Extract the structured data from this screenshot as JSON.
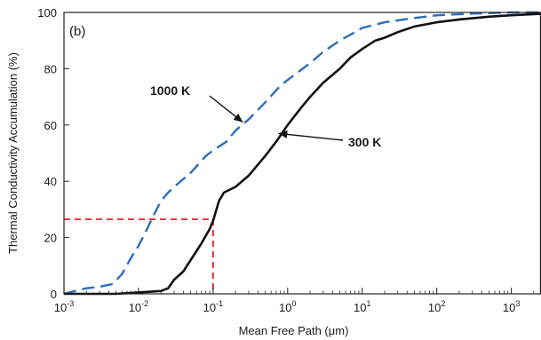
{
  "chart_data": {
    "type": "line",
    "panel_label": "(b)",
    "xlabel": "Mean Free Path (μm)",
    "ylabel": "Thermal Conductivity Accumulation (%)",
    "x_scale": "log",
    "xlim": [
      0.001,
      2500
    ],
    "ylim": [
      0,
      100
    ],
    "x_ticks": [
      {
        "value": 0.001,
        "base": "10",
        "exp": "-3"
      },
      {
        "value": 0.01,
        "base": "10",
        "exp": "-2"
      },
      {
        "value": 0.1,
        "base": "10",
        "exp": "-1"
      },
      {
        "value": 1,
        "base": "10",
        "exp": "0"
      },
      {
        "value": 10,
        "base": "10",
        "exp": "1"
      },
      {
        "value": 100,
        "base": "10",
        "exp": "2"
      },
      {
        "value": 1000,
        "base": "10",
        "exp": "3"
      }
    ],
    "y_ticks": [
      0,
      20,
      40,
      60,
      80,
      100
    ],
    "grid": false,
    "series": [
      {
        "name": "1000 K",
        "color": "#2a6ebb",
        "dash": "dashed",
        "points": [
          [
            0.001,
            0
          ],
          [
            0.0014,
            1
          ],
          [
            0.002,
            2
          ],
          [
            0.003,
            2.5
          ],
          [
            0.0045,
            3.5
          ],
          [
            0.006,
            7
          ],
          [
            0.008,
            13
          ],
          [
            0.01,
            17
          ],
          [
            0.013,
            23
          ],
          [
            0.016,
            28
          ],
          [
            0.02,
            33
          ],
          [
            0.025,
            36
          ],
          [
            0.03,
            38
          ],
          [
            0.05,
            43
          ],
          [
            0.08,
            49
          ],
          [
            0.1,
            51
          ],
          [
            0.15,
            54
          ],
          [
            0.2,
            58
          ],
          [
            0.3,
            62
          ],
          [
            0.5,
            68
          ],
          [
            0.8,
            74
          ],
          [
            1,
            76
          ],
          [
            2,
            82
          ],
          [
            3,
            86
          ],
          [
            5,
            90
          ],
          [
            8,
            93
          ],
          [
            10,
            94.5
          ],
          [
            20,
            96.5
          ],
          [
            50,
            98
          ],
          [
            100,
            99
          ],
          [
            300,
            99.6
          ],
          [
            1000,
            100
          ],
          [
            2500,
            100
          ]
        ]
      },
      {
        "name": "300 K",
        "color": "#111111",
        "dash": "solid",
        "points": [
          [
            0.001,
            0
          ],
          [
            0.005,
            0
          ],
          [
            0.01,
            0.5
          ],
          [
            0.02,
            1
          ],
          [
            0.025,
            2
          ],
          [
            0.03,
            5
          ],
          [
            0.04,
            8
          ],
          [
            0.05,
            12
          ],
          [
            0.07,
            18
          ],
          [
            0.09,
            23
          ],
          [
            0.1,
            26
          ],
          [
            0.12,
            33
          ],
          [
            0.14,
            36
          ],
          [
            0.2,
            38
          ],
          [
            0.3,
            42
          ],
          [
            0.5,
            49
          ],
          [
            0.7,
            54
          ],
          [
            1,
            60
          ],
          [
            1.5,
            66
          ],
          [
            2,
            70
          ],
          [
            3,
            75
          ],
          [
            5,
            80
          ],
          [
            7,
            84
          ],
          [
            10,
            87
          ],
          [
            15,
            90
          ],
          [
            20,
            91
          ],
          [
            30,
            93
          ],
          [
            50,
            95
          ],
          [
            100,
            96.5
          ],
          [
            200,
            97.5
          ],
          [
            500,
            98.5
          ],
          [
            1000,
            99
          ],
          [
            2500,
            99.5
          ]
        ]
      }
    ],
    "annotations": [
      {
        "text": "1000 K",
        "series": "1000 K",
        "arrow_to": [
          0.25,
          61
        ]
      },
      {
        "text": "300 K",
        "series": "300 K",
        "arrow_to": [
          0.75,
          57
        ]
      }
    ],
    "reference_lines": {
      "color": "#e02020",
      "x": 0.1,
      "y": 26.5
    }
  }
}
